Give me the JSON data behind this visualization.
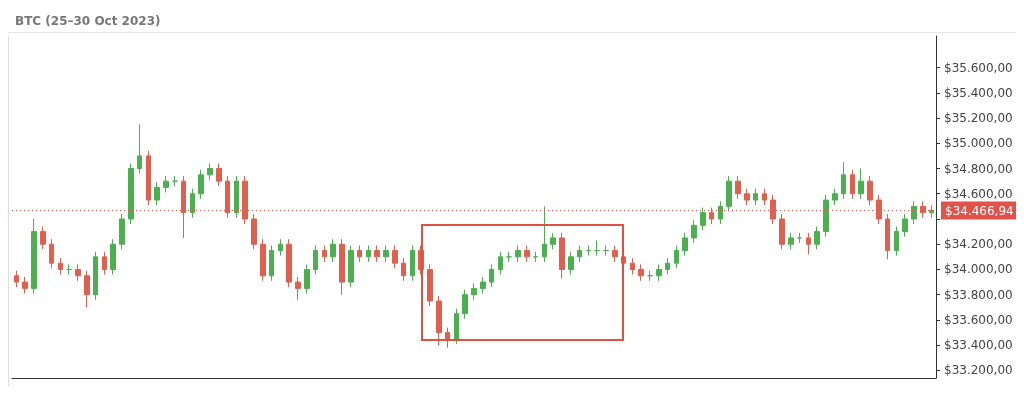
{
  "chart_data": {
    "type": "candlestick",
    "title": "BTC (25–30 Oct 2023)",
    "categories": [
      null,
      null,
      null,
      null,
      null,
      null,
      null,
      null,
      null,
      null,
      null,
      null,
      null,
      null,
      null,
      null,
      null,
      null,
      null,
      null,
      null,
      null,
      null,
      null,
      null,
      null,
      null,
      null,
      null,
      null,
      null,
      null,
      null,
      null,
      null,
      null,
      null,
      null,
      null,
      null,
      null,
      null,
      null,
      null,
      null,
      null,
      null,
      null,
      null,
      null,
      null,
      null,
      null,
      null,
      null,
      null,
      null,
      null,
      null,
      null,
      null,
      null,
      null,
      null,
      null,
      null,
      null,
      null,
      null,
      null,
      null,
      null,
      null,
      null,
      null,
      null,
      null,
      null,
      null,
      null,
      null,
      null,
      null,
      null,
      null,
      null,
      null,
      null,
      null,
      null,
      null,
      null,
      null,
      null,
      null,
      null,
      null,
      null,
      null,
      null,
      null,
      null,
      null,
      null,
      null
    ],
    "ohlc": [
      [
        33950,
        33990,
        33860,
        33900
      ],
      [
        33900,
        33940,
        33810,
        33850
      ],
      [
        33850,
        34400,
        33810,
        34300
      ],
      [
        34300,
        34340,
        34160,
        34200
      ],
      [
        34200,
        34240,
        34010,
        34050
      ],
      [
        34050,
        34090,
        33960,
        34000
      ],
      [
        34000,
        34040,
        33960,
        34000
      ],
      [
        34000,
        34040,
        33910,
        33950
      ],
      [
        33950,
        33990,
        33700,
        33800
      ],
      [
        33800,
        34140,
        33760,
        34100
      ],
      [
        34100,
        34140,
        33960,
        34000
      ],
      [
        34000,
        34240,
        33960,
        34200
      ],
      [
        34200,
        34440,
        34160,
        34400
      ],
      [
        34400,
        34840,
        34360,
        34800
      ],
      [
        34800,
        35150,
        34760,
        34900
      ],
      [
        34900,
        34940,
        34510,
        34550
      ],
      [
        34550,
        34690,
        34510,
        34650
      ],
      [
        34650,
        34740,
        34610,
        34700
      ],
      [
        34700,
        34740,
        34660,
        34700
      ],
      [
        34700,
        34740,
        34250,
        34450
      ],
      [
        34450,
        34640,
        34410,
        34600
      ],
      [
        34600,
        34790,
        34560,
        34750
      ],
      [
        34750,
        34840,
        34710,
        34800
      ],
      [
        34800,
        34840,
        34660,
        34700
      ],
      [
        34700,
        34740,
        34410,
        34450
      ],
      [
        34450,
        34740,
        34410,
        34700
      ],
      [
        34700,
        34740,
        34360,
        34400
      ],
      [
        34400,
        34440,
        34160,
        34200
      ],
      [
        34200,
        34240,
        33910,
        33950
      ],
      [
        33950,
        34190,
        33910,
        34150
      ],
      [
        34150,
        34240,
        34110,
        34200
      ],
      [
        34200,
        34240,
        33860,
        33900
      ],
      [
        33900,
        33940,
        33760,
        33850
      ],
      [
        33850,
        34040,
        33810,
        34000
      ],
      [
        34000,
        34190,
        33960,
        34150
      ],
      [
        34150,
        34190,
        34060,
        34100
      ],
      [
        34100,
        34240,
        34060,
        34200
      ],
      [
        34200,
        34240,
        33800,
        33900
      ],
      [
        33900,
        34190,
        33860,
        34150
      ],
      [
        34150,
        34190,
        34060,
        34100
      ],
      [
        34100,
        34190,
        34060,
        34150
      ],
      [
        34150,
        34190,
        34060,
        34100
      ],
      [
        34100,
        34190,
        34060,
        34150
      ],
      [
        34150,
        34190,
        34010,
        34050
      ],
      [
        34050,
        34090,
        33910,
        33950
      ],
      [
        33950,
        34190,
        33910,
        34150
      ],
      [
        34150,
        34190,
        33960,
        34000
      ],
      [
        34000,
        34040,
        33710,
        33750
      ],
      [
        33750,
        33790,
        33400,
        33500
      ],
      [
        33500,
        33540,
        33380,
        33450
      ],
      [
        33450,
        33690,
        33410,
        33650
      ],
      [
        33650,
        33840,
        33610,
        33800
      ],
      [
        33800,
        33890,
        33760,
        33850
      ],
      [
        33850,
        33940,
        33810,
        33900
      ],
      [
        33900,
        34040,
        33860,
        34000
      ],
      [
        34000,
        34140,
        33960,
        34100
      ],
      [
        34100,
        34140,
        34060,
        34100
      ],
      [
        34100,
        34190,
        34060,
        34150
      ],
      [
        34150,
        34190,
        34060,
        34100
      ],
      [
        34100,
        34140,
        34060,
        34100
      ],
      [
        34100,
        34500,
        34060,
        34200
      ],
      [
        34200,
        34290,
        34160,
        34250
      ],
      [
        34250,
        34290,
        33930,
        34000
      ],
      [
        34000,
        34140,
        33960,
        34100
      ],
      [
        34100,
        34190,
        34060,
        34150
      ],
      [
        34150,
        34190,
        34110,
        34150
      ],
      [
        34150,
        34230,
        34110,
        34150
      ],
      [
        34150,
        34190,
        34110,
        34150
      ],
      [
        34150,
        34190,
        34060,
        34100
      ],
      [
        34100,
        34140,
        34010,
        34050
      ],
      [
        34050,
        34090,
        33960,
        34000
      ],
      [
        34000,
        34040,
        33910,
        33950
      ],
      [
        33950,
        33990,
        33910,
        33950
      ],
      [
        33950,
        34040,
        33910,
        34000
      ],
      [
        34000,
        34090,
        33960,
        34050
      ],
      [
        34050,
        34190,
        34010,
        34150
      ],
      [
        34150,
        34290,
        34110,
        34250
      ],
      [
        34250,
        34390,
        34210,
        34350
      ],
      [
        34350,
        34490,
        34310,
        34450
      ],
      [
        34450,
        34490,
        34360,
        34400
      ],
      [
        34400,
        34540,
        34360,
        34500
      ],
      [
        34500,
        34740,
        34460,
        34700
      ],
      [
        34700,
        34740,
        34560,
        34600
      ],
      [
        34600,
        34640,
        34510,
        34550
      ],
      [
        34550,
        34640,
        34510,
        34600
      ],
      [
        34600,
        34640,
        34510,
        34550
      ],
      [
        34550,
        34590,
        34360,
        34400
      ],
      [
        34400,
        34440,
        34160,
        34200
      ],
      [
        34200,
        34290,
        34160,
        34250
      ],
      [
        34250,
        34290,
        34210,
        34250
      ],
      [
        34250,
        34290,
        34120,
        34200
      ],
      [
        34200,
        34340,
        34160,
        34300
      ],
      [
        34300,
        34590,
        34260,
        34550
      ],
      [
        34550,
        34640,
        34510,
        34600
      ],
      [
        34600,
        34850,
        34560,
        34750
      ],
      [
        34750,
        34790,
        34560,
        34600
      ],
      [
        34600,
        34800,
        34560,
        34700
      ],
      [
        34700,
        34740,
        34510,
        34550
      ],
      [
        34550,
        34590,
        34360,
        34400
      ],
      [
        34400,
        34440,
        34080,
        34150
      ],
      [
        34150,
        34340,
        34110,
        34300
      ],
      [
        34300,
        34440,
        34260,
        34400
      ],
      [
        34400,
        34540,
        34360,
        34500
      ],
      [
        34500,
        34540,
        34410,
        34450
      ],
      [
        34450,
        34510,
        34410,
        34470
      ]
    ],
    "ylim": [
      33140,
      35850
    ],
    "yticks": [
      {
        "value": 33200,
        "label": "$33.200,00"
      },
      {
        "value": 33400,
        "label": "$33.400,00"
      },
      {
        "value": 33600,
        "label": "$33.600,00"
      },
      {
        "value": 33800,
        "label": "$33.800,00"
      },
      {
        "value": 34000,
        "label": "$34.000,00"
      },
      {
        "value": 34200,
        "label": "$34.200,00"
      },
      {
        "value": 34400,
        "label": null
      },
      {
        "value": 34600,
        "label": "$34.600,00"
      },
      {
        "value": 34800,
        "label": "$34.800,00"
      },
      {
        "value": 35000,
        "label": "$35.000,00"
      },
      {
        "value": 35200,
        "label": "$35.200,00"
      },
      {
        "value": 35400,
        "label": "$35.400,00"
      },
      {
        "value": 35600,
        "label": "$35.600,00"
      }
    ],
    "ref_lines": [
      {
        "axis": "y",
        "value": 34466.94,
        "label": "$34.466,94",
        "color": "#e0524a",
        "line_style": "dotted"
      }
    ],
    "tick_labels": "y",
    "grid": false
  }
}
